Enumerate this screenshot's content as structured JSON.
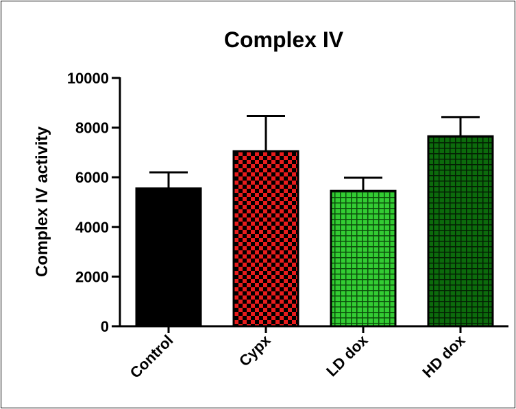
{
  "chart_data": {
    "type": "bar",
    "title": "Complex IV",
    "xlabel": "",
    "ylabel": "Complex IV activity",
    "ylim": [
      0,
      10000
    ],
    "yticks": [
      0,
      2000,
      4000,
      6000,
      8000,
      10000
    ],
    "categories": [
      "Control",
      "Cypx",
      "LD dox",
      "HD dox"
    ],
    "values": [
      5550,
      7050,
      5450,
      7650
    ],
    "error_upper": [
      6200,
      8470,
      5980,
      8420
    ],
    "bar_colors": [
      "#000000",
      "#e81c1c",
      "#33cc33",
      "#0c6b0c"
    ],
    "bar_patterns": [
      "solid",
      "checker",
      "grid",
      "grid"
    ],
    "grid": false,
    "legend": "none"
  }
}
